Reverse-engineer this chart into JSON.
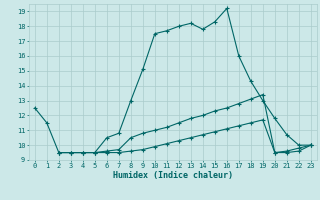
{
  "xlabel": "Humidex (Indice chaleur)",
  "xlim": [
    -0.5,
    23.5
  ],
  "ylim": [
    9,
    19.5
  ],
  "yticks": [
    9,
    10,
    11,
    12,
    13,
    14,
    15,
    16,
    17,
    18,
    19
  ],
  "xticks": [
    0,
    1,
    2,
    3,
    4,
    5,
    6,
    7,
    8,
    9,
    10,
    11,
    12,
    13,
    14,
    15,
    16,
    17,
    18,
    19,
    20,
    21,
    22,
    23
  ],
  "background_color": "#cce8e8",
  "grid_color": "#aacccc",
  "line_color": "#006666",
  "line_width": 0.8,
  "marker": "+",
  "marker_size": 3.5,
  "series": {
    "line1_x": [
      0,
      1,
      2,
      3,
      4,
      5,
      6,
      7,
      8,
      9,
      10,
      11,
      12,
      13,
      14,
      15,
      16,
      17,
      18,
      19,
      20,
      21,
      22,
      23
    ],
    "line1_y": [
      12.5,
      11.5,
      9.5,
      9.5,
      9.5,
      9.5,
      10.5,
      10.8,
      13.0,
      15.1,
      17.5,
      17.7,
      18.0,
      18.2,
      17.8,
      18.3,
      19.2,
      16.0,
      14.3,
      13.0,
      11.8,
      10.7,
      10.0,
      10.0
    ],
    "line2_x": [
      2,
      3,
      4,
      5,
      6,
      7,
      8,
      9,
      10,
      11,
      12,
      13,
      14,
      15,
      16,
      17,
      18,
      19,
      20,
      21,
      22,
      23
    ],
    "line2_y": [
      9.5,
      9.5,
      9.5,
      9.5,
      9.6,
      9.7,
      10.5,
      10.8,
      11.0,
      11.2,
      11.5,
      11.8,
      12.0,
      12.3,
      12.5,
      12.8,
      13.1,
      13.4,
      9.5,
      9.6,
      9.8,
      10.0
    ],
    "line3_x": [
      2,
      3,
      4,
      5,
      6,
      7,
      8,
      9,
      10,
      11,
      12,
      13,
      14,
      15,
      16,
      17,
      18,
      19,
      20,
      21,
      22,
      23
    ],
    "line3_y": [
      9.5,
      9.5,
      9.5,
      9.5,
      9.5,
      9.5,
      9.6,
      9.7,
      9.9,
      10.1,
      10.3,
      10.5,
      10.7,
      10.9,
      11.1,
      11.3,
      11.5,
      11.7,
      9.5,
      9.5,
      9.6,
      10.0
    ]
  }
}
